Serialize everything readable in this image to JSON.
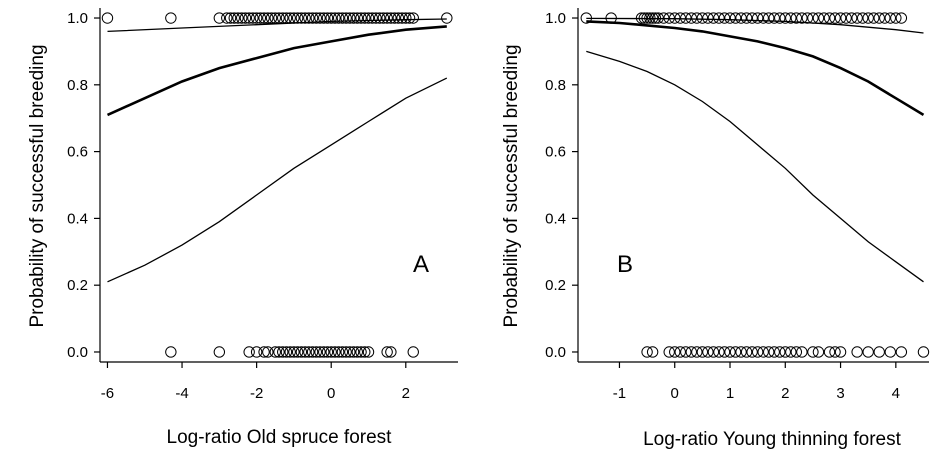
{
  "chart_data": [
    {
      "type": "line",
      "panel_label": "A",
      "xlabel": "Log-ratio Old spruce forest",
      "ylabel": "Probability of successful breeding",
      "xlim": [
        -6.2,
        3.4
      ],
      "ylim": [
        -0.03,
        1.03
      ],
      "xticks": [
        -6,
        -4,
        -2,
        0,
        2
      ],
      "yticks": [
        0.0,
        0.2,
        0.4,
        0.6,
        0.8,
        1.0
      ],
      "ytick_labels": [
        "0.0",
        "0.2",
        "0.4",
        "0.6",
        "0.8",
        "1.0"
      ],
      "xtick_labels": [
        "-6",
        "-4",
        "-2",
        "0",
        "2"
      ],
      "series": [
        {
          "role": "fit",
          "x": [
            -6,
            -5,
            -4,
            -3,
            -2,
            -1,
            0,
            1,
            2,
            3.1
          ],
          "y": [
            0.71,
            0.76,
            0.81,
            0.85,
            0.88,
            0.91,
            0.93,
            0.95,
            0.965,
            0.975
          ]
        },
        {
          "role": "upper",
          "x": [
            -6,
            -4,
            -2,
            0,
            2,
            3.1
          ],
          "y": [
            0.96,
            0.97,
            0.98,
            0.99,
            0.995,
            0.997
          ]
        },
        {
          "role": "lower",
          "x": [
            -6,
            -5,
            -4,
            -3,
            -2,
            -1,
            0,
            1,
            2,
            3.1
          ],
          "y": [
            0.21,
            0.26,
            0.32,
            0.39,
            0.47,
            0.55,
            0.62,
            0.69,
            0.76,
            0.82
          ]
        }
      ],
      "points_success": [
        -6.0,
        -4.3,
        -3.0,
        -2.8,
        -2.7,
        -2.6,
        -2.5,
        -2.4,
        -2.3,
        -2.2,
        -2.1,
        -2.0,
        -1.9,
        -1.8,
        -1.7,
        -1.6,
        -1.5,
        -1.4,
        -1.3,
        -1.2,
        -1.1,
        -1.0,
        -0.9,
        -0.8,
        -0.7,
        -0.6,
        -0.5,
        -0.4,
        -0.3,
        -0.2,
        -0.1,
        0.0,
        0.1,
        0.2,
        0.3,
        0.4,
        0.5,
        0.6,
        0.7,
        0.8,
        0.9,
        1.0,
        1.1,
        1.2,
        1.3,
        1.4,
        1.5,
        1.6,
        1.7,
        1.8,
        1.9,
        2.0,
        2.1,
        2.2,
        3.1
      ],
      "points_failure": [
        -4.3,
        -3.0,
        -2.2,
        -2.0,
        -1.8,
        -1.7,
        -1.5,
        -1.4,
        -1.3,
        -1.2,
        -1.1,
        -1.0,
        -0.9,
        -0.8,
        -0.7,
        -0.6,
        -0.5,
        -0.4,
        -0.3,
        -0.2,
        -0.1,
        0.0,
        0.1,
        0.2,
        0.3,
        0.4,
        0.5,
        0.6,
        0.7,
        0.8,
        0.9,
        1.0,
        1.5,
        1.6,
        2.2
      ]
    },
    {
      "type": "line",
      "panel_label": "B",
      "xlabel": "Log-ratio Young thinning forest",
      "ylabel": "Probability of successful breeding",
      "xlim": [
        -1.75,
        4.6
      ],
      "ylim": [
        -0.03,
        1.03
      ],
      "xticks": [
        -1,
        0,
        1,
        2,
        3,
        4
      ],
      "yticks": [
        0.0,
        0.2,
        0.4,
        0.6,
        0.8,
        1.0
      ],
      "ytick_labels": [
        "0.0",
        "0.2",
        "0.4",
        "0.6",
        "0.8",
        "1.0"
      ],
      "xtick_labels": [
        "-1",
        "0",
        "1",
        "2",
        "3",
        "4"
      ],
      "series": [
        {
          "role": "fit",
          "x": [
            -1.6,
            -1,
            -0.5,
            0,
            0.5,
            1,
            1.5,
            2,
            2.5,
            3,
            3.5,
            4,
            4.5
          ],
          "y": [
            0.99,
            0.985,
            0.978,
            0.97,
            0.96,
            0.945,
            0.93,
            0.91,
            0.885,
            0.85,
            0.81,
            0.76,
            0.71
          ]
        },
        {
          "role": "upper",
          "x": [
            -1.6,
            0,
            1,
            2,
            3,
            4,
            4.5
          ],
          "y": [
            0.999,
            0.998,
            0.995,
            0.99,
            0.98,
            0.965,
            0.955
          ]
        },
        {
          "role": "lower",
          "x": [
            -1.6,
            -1,
            -0.5,
            0,
            0.5,
            1,
            1.5,
            2,
            2.5,
            3,
            3.5,
            4,
            4.5
          ],
          "y": [
            0.9,
            0.87,
            0.84,
            0.8,
            0.75,
            0.69,
            0.62,
            0.55,
            0.47,
            0.4,
            0.33,
            0.27,
            0.21
          ]
        }
      ],
      "points_success": [
        -1.6,
        -1.15,
        -0.6,
        -0.55,
        -0.5,
        -0.45,
        -0.4,
        -0.35,
        -0.3,
        -0.2,
        -0.1,
        0.0,
        0.1,
        0.2,
        0.3,
        0.4,
        0.5,
        0.6,
        0.7,
        0.8,
        0.9,
        1.0,
        1.1,
        1.2,
        1.3,
        1.4,
        1.5,
        1.6,
        1.7,
        1.8,
        1.9,
        2.0,
        2.1,
        2.2,
        2.3,
        2.4,
        2.5,
        2.6,
        2.7,
        2.8,
        2.9,
        3.0,
        3.1,
        3.2,
        3.3,
        3.4,
        3.5,
        3.6,
        3.7,
        3.8,
        3.9,
        4.0,
        4.1
      ],
      "points_failure": [
        -0.5,
        -0.4,
        -0.1,
        0.0,
        0.1,
        0.2,
        0.3,
        0.4,
        0.5,
        0.6,
        0.7,
        0.8,
        0.9,
        1.0,
        1.1,
        1.2,
        1.3,
        1.4,
        1.5,
        1.6,
        1.7,
        1.8,
        1.9,
        2.0,
        2.1,
        2.2,
        2.3,
        2.5,
        2.6,
        2.8,
        2.9,
        3.0,
        3.3,
        3.5,
        3.7,
        3.9,
        4.1,
        4.5
      ]
    }
  ]
}
